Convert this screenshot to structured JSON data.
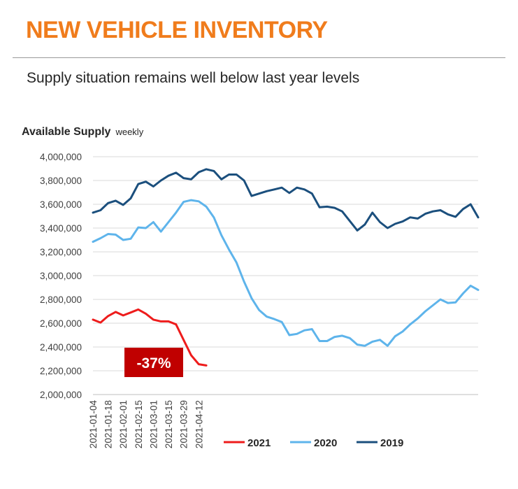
{
  "header": {
    "title": "NEW VEHICLE INVENTORY",
    "subtitle": "Supply situation remains well below last year levels"
  },
  "chart_data": {
    "type": "line",
    "title": "Available Supply",
    "title_note": "weekly",
    "ylim": [
      2000000,
      4000000
    ],
    "yticks": [
      "2,000,000",
      "2,200,000",
      "2,400,000",
      "2,600,000",
      "2,800,000",
      "3,000,000",
      "3,200,000",
      "3,400,000",
      "3,600,000",
      "3,800,000",
      "4,000,000"
    ],
    "ytick_values": [
      2000000,
      2200000,
      2400000,
      2600000,
      2800000,
      3000000,
      3200000,
      3400000,
      3600000,
      3800000,
      4000000
    ],
    "x_count": 52,
    "xticks": [
      {
        "index": 0,
        "label": "2021-01-04"
      },
      {
        "index": 2,
        "label": "2021-01-18"
      },
      {
        "index": 4,
        "label": "2021-02-01"
      },
      {
        "index": 6,
        "label": "2021-02-15"
      },
      {
        "index": 8,
        "label": "2021-03-01"
      },
      {
        "index": 10,
        "label": "2021-03-15"
      },
      {
        "index": 12,
        "label": "2021-03-29"
      },
      {
        "index": 14,
        "label": "2021-04-12"
      }
    ],
    "grid": true,
    "legend_position": "bottom-right",
    "series": [
      {
        "name": "2021",
        "color": "#ee1c1c",
        "values": [
          2630000,
          2605000,
          2660000,
          2695000,
          2665000,
          2690000,
          2715000,
          2680000,
          2630000,
          2615000,
          2615000,
          2590000,
          2460000,
          2330000,
          2255000,
          2245000
        ]
      },
      {
        "name": "2020",
        "color": "#5eb4eb",
        "values": [
          3285000,
          3315000,
          3350000,
          3345000,
          3300000,
          3310000,
          3405000,
          3400000,
          3450000,
          3370000,
          3450000,
          3530000,
          3620000,
          3635000,
          3625000,
          3580000,
          3490000,
          3340000,
          3220000,
          3110000,
          2950000,
          2810000,
          2710000,
          2655000,
          2635000,
          2610000,
          2500000,
          2510000,
          2540000,
          2550000,
          2450000,
          2450000,
          2485000,
          2495000,
          2475000,
          2420000,
          2410000,
          2445000,
          2460000,
          2410000,
          2490000,
          2530000,
          2590000,
          2640000,
          2700000,
          2750000,
          2800000,
          2770000,
          2775000,
          2850000,
          2915000,
          2880000
        ]
      },
      {
        "name": "2019",
        "color": "#1b4f7d",
        "values": [
          3530000,
          3550000,
          3610000,
          3630000,
          3595000,
          3650000,
          3770000,
          3790000,
          3750000,
          3800000,
          3840000,
          3865000,
          3820000,
          3810000,
          3870000,
          3895000,
          3880000,
          3810000,
          3850000,
          3850000,
          3800000,
          3670000,
          3690000,
          3710000,
          3725000,
          3740000,
          3695000,
          3740000,
          3725000,
          3690000,
          3575000,
          3580000,
          3570000,
          3540000,
          3460000,
          3380000,
          3430000,
          3530000,
          3450000,
          3400000,
          3435000,
          3455000,
          3490000,
          3480000,
          3520000,
          3540000,
          3550000,
          3515000,
          3495000,
          3560000,
          3600000,
          3490000
        ]
      }
    ],
    "annotations": [
      {
        "text": "-37%",
        "color": "#c00000"
      }
    ]
  }
}
